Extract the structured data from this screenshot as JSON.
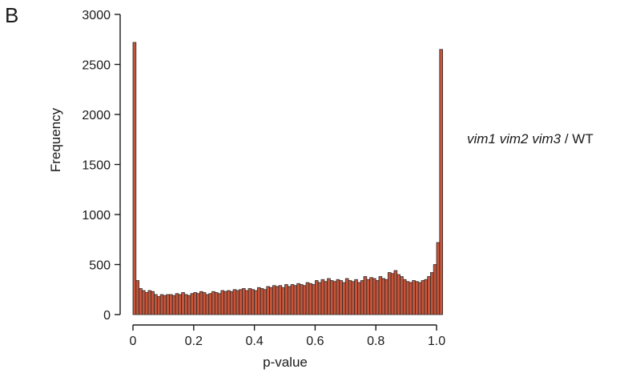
{
  "panel_label": "B",
  "side_label": {
    "italic": "vim1 vim2 vim3",
    "rest": " / WT"
  },
  "colors": {
    "bar_fill": "#c8553a",
    "bar_edge": "#2b2b2b",
    "axis": "#1a1a1a"
  },
  "chart_data": {
    "type": "bar",
    "title": "",
    "xlabel": "p-value",
    "ylabel": "Frequency",
    "xlim": [
      0,
      1
    ],
    "ylim": [
      0,
      3000
    ],
    "xticks": [
      0,
      0.2,
      0.4,
      0.6,
      0.8,
      1.0
    ],
    "xtick_labels": [
      "0",
      "0.2",
      "0.4",
      "0.6",
      "0.8",
      "1.0"
    ],
    "yticks": [
      0,
      500,
      1000,
      1500,
      2000,
      2500,
      3000
    ],
    "ytick_labels": [
      "0",
      "500",
      "1000",
      "1500",
      "2000",
      "2500",
      "3000"
    ],
    "bin_width": 0.01,
    "values": [
      2720,
      340,
      260,
      240,
      220,
      240,
      230,
      200,
      180,
      200,
      190,
      200,
      200,
      190,
      210,
      200,
      220,
      200,
      190,
      210,
      220,
      210,
      230,
      220,
      200,
      210,
      230,
      220,
      210,
      240,
      230,
      240,
      230,
      250,
      240,
      250,
      260,
      240,
      260,
      250,
      240,
      270,
      260,
      250,
      280,
      270,
      290,
      280,
      290,
      270,
      300,
      280,
      300,
      290,
      310,
      300,
      290,
      320,
      310,
      300,
      340,
      320,
      350,
      330,
      360,
      340,
      330,
      350,
      340,
      320,
      360,
      340,
      330,
      350,
      320,
      340,
      380,
      350,
      370,
      360,
      340,
      380,
      360,
      350,
      420,
      410,
      440,
      400,
      380,
      350,
      330,
      320,
      340,
      330,
      320,
      340,
      350,
      380,
      420,
      500,
      720,
      2650
    ]
  }
}
